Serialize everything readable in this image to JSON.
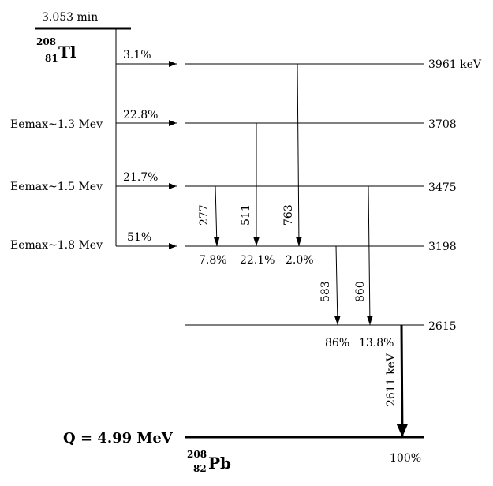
{
  "parent": {
    "halflife": "3.053 min",
    "mass": "208",
    "z": "81",
    "symbol": "Tl"
  },
  "daughter": {
    "mass": "208",
    "z": "82",
    "symbol": "Pb",
    "ground_intensity": "100%"
  },
  "q_value": "Q = 4.99 MeV",
  "levels": [
    {
      "energy": "3961 keV",
      "beta_branch": "3.1%",
      "emax": ""
    },
    {
      "energy": "3708",
      "beta_branch": "22.8%",
      "emax": "Eemax~1.3 Mev"
    },
    {
      "energy": "3475",
      "beta_branch": "21.7%",
      "emax": "Eemax~1.5 Mev"
    },
    {
      "energy": "3198",
      "beta_branch": "51%",
      "emax": "Eemax~1.8 Mev"
    },
    {
      "energy": "2615"
    }
  ],
  "gammas": [
    {
      "energy": "277",
      "intensity": "7.8%"
    },
    {
      "energy": "511",
      "intensity": "22.1%"
    },
    {
      "energy": "763",
      "intensity": "2.0%"
    },
    {
      "energy": "583",
      "intensity": "86%"
    },
    {
      "energy": "860",
      "intensity": "13.8%"
    },
    {
      "energy": "2611 keV",
      "intensity": ""
    }
  ]
}
